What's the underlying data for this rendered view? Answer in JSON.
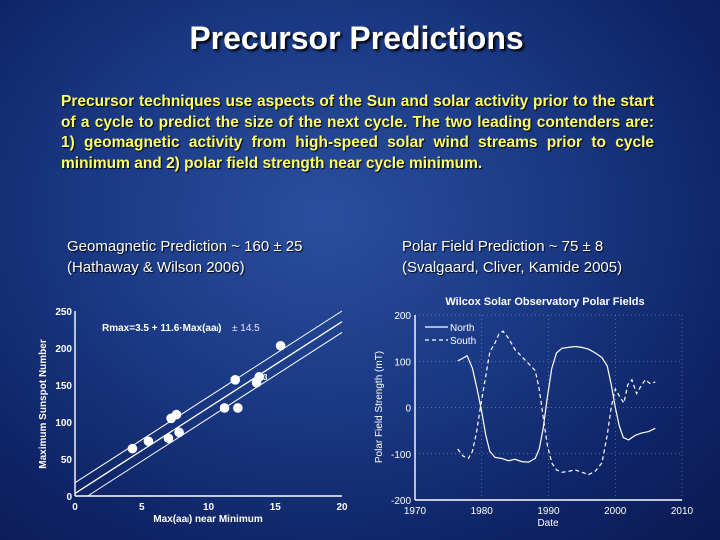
{
  "slide": {
    "title": "Precursor Predictions",
    "intro": "Precursor techniques use aspects of the Sun and solar activity prior to the start of a cycle to predict the size of the next cycle. The two leading contenders are: 1) geomagnetic activity from high-speed solar wind streams prior to cycle minimum and 2) polar field strength near cycle minimum.",
    "left_caption": {
      "line1": "Geomagnetic Prediction ~ 160 ± 25",
      "line2": "(Hathaway & Wilson 2006)"
    },
    "right_caption": {
      "line1": "Polar Field Prediction ~ 75 ± 8",
      "line2": "(Svalgaard, Cliver, Kamide 2005)"
    }
  },
  "chart_data": [
    {
      "type": "scatter",
      "title": "",
      "xlabel": "Max(aaₗ) near Minimum",
      "ylabel": "Maximum Sunspot Number",
      "xlim": [
        0,
        20
      ],
      "ylim": [
        0,
        250
      ],
      "xticks": [
        0,
        5,
        10,
        15,
        20
      ],
      "yticks": [
        0,
        50,
        100,
        150,
        200,
        250
      ],
      "fit_label": "Rmax=3.5 + 11.6·Max(aaₗ)",
      "fit_error_label": "± 14.5",
      "fit": {
        "intercept": 3.5,
        "slope": 11.6,
        "error": 14.5
      },
      "point_annotation": "23",
      "points": [
        {
          "x": 4.3,
          "y": 64
        },
        {
          "x": 5.5,
          "y": 74
        },
        {
          "x": 7.0,
          "y": 78
        },
        {
          "x": 7.2,
          "y": 105
        },
        {
          "x": 7.6,
          "y": 110
        },
        {
          "x": 7.8,
          "y": 86
        },
        {
          "x": 11.2,
          "y": 119
        },
        {
          "x": 12.0,
          "y": 157
        },
        {
          "x": 12.2,
          "y": 119
        },
        {
          "x": 13.6,
          "y": 153
        },
        {
          "x": 13.8,
          "y": 161
        },
        {
          "x": 15.4,
          "y": 203
        }
      ]
    },
    {
      "type": "line",
      "title": "Wilcox Solar Observatory Polar Fields",
      "xlabel": "Date",
      "ylabel": "Polar Field Strength (mT)",
      "xlim": [
        1970,
        2010
      ],
      "ylim": [
        -200,
        200
      ],
      "xticks": [
        1970,
        1980,
        1990,
        2000,
        2010
      ],
      "yticks": [
        -200,
        -100,
        0,
        100,
        200
      ],
      "series": [
        {
          "name": "North",
          "style": "solid",
          "points": [
            [
              1976.4,
              101
            ],
            [
              1977,
              105
            ],
            [
              1977.8,
              112
            ],
            [
              1978.6,
              85
            ],
            [
              1979.3,
              40
            ],
            [
              1980.0,
              -10
            ],
            [
              1980.6,
              -60
            ],
            [
              1981.2,
              -95
            ],
            [
              1982,
              -108
            ],
            [
              1983,
              -110
            ],
            [
              1984,
              -115
            ],
            [
              1985,
              -112
            ],
            [
              1986,
              -117
            ],
            [
              1987,
              -118
            ],
            [
              1988,
              -110
            ],
            [
              1988.6,
              -90
            ],
            [
              1989.2,
              -45
            ],
            [
              1989.8,
              20
            ],
            [
              1990.5,
              85
            ],
            [
              1991.2,
              118
            ],
            [
              1992,
              128
            ],
            [
              1993,
              130
            ],
            [
              1994,
              132
            ],
            [
              1995,
              130
            ],
            [
              1996,
              126
            ],
            [
              1997,
              118
            ],
            [
              1998,
              108
            ],
            [
              1998.8,
              90
            ],
            [
              1999.4,
              50
            ],
            [
              2000.0,
              0
            ],
            [
              2000.6,
              -40
            ],
            [
              2001.2,
              -65
            ],
            [
              2002,
              -70
            ],
            [
              2003,
              -60
            ],
            [
              2004,
              -55
            ],
            [
              2005,
              -52
            ],
            [
              2006,
              -45
            ]
          ]
        },
        {
          "name": "South",
          "style": "dashed",
          "points": [
            [
              1976.4,
              -90
            ],
            [
              1977.2,
              -105
            ],
            [
              1978.0,
              -110
            ],
            [
              1978.6,
              -95
            ],
            [
              1979.2,
              -55
            ],
            [
              1979.8,
              0
            ],
            [
              1980.5,
              60
            ],
            [
              1981.2,
              120
            ],
            [
              1982,
              140
            ],
            [
              1982.6,
              160
            ],
            [
              1983.2,
              165
            ],
            [
              1984,
              150
            ],
            [
              1985,
              125
            ],
            [
              1986,
              110
            ],
            [
              1987,
              95
            ],
            [
              1988,
              80
            ],
            [
              1988.6,
              40
            ],
            [
              1989.2,
              -20
            ],
            [
              1989.8,
              -80
            ],
            [
              1990.5,
              -120
            ],
            [
              1991.2,
              -135
            ],
            [
              1992,
              -140
            ],
            [
              1993,
              -138
            ],
            [
              1994,
              -135
            ],
            [
              1995,
              -140
            ],
            [
              1996,
              -145
            ],
            [
              1997,
              -138
            ],
            [
              1998,
              -120
            ],
            [
              1998.8,
              -60
            ],
            [
              1999.4,
              0
            ],
            [
              2000.0,
              40
            ],
            [
              2000.8,
              20
            ],
            [
              2001.3,
              10
            ],
            [
              2001.9,
              50
            ],
            [
              2002.5,
              60
            ],
            [
              2003.2,
              30
            ],
            [
              2003.8,
              45
            ],
            [
              2004.5,
              60
            ],
            [
              2005.2,
              52
            ],
            [
              2006,
              55
            ]
          ]
        }
      ]
    }
  ]
}
